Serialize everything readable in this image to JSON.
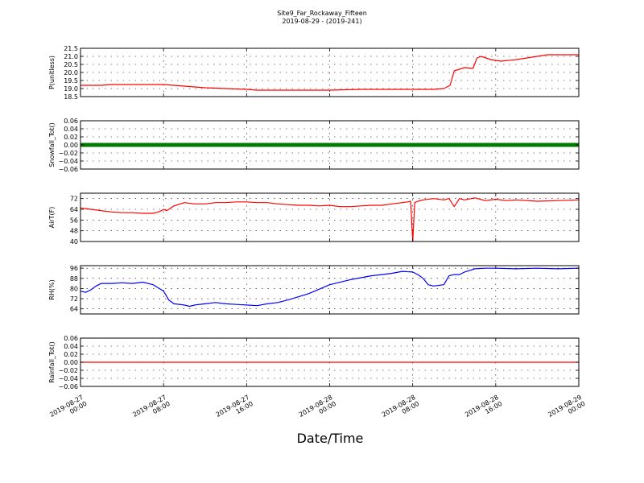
{
  "figure": {
    "title": "Site9_Far_Rockaway_Fifteen",
    "subtitle": "2019-08-29 - (2019-241)",
    "xlabel": "Date/Time"
  },
  "chart_data": [
    {
      "type": "line",
      "ylabel": "P(unitless)",
      "ylim": [
        18.5,
        21.5
      ],
      "yticks": [
        "18.5",
        "19.0",
        "19.5",
        "20.0",
        "20.5",
        "21.0",
        "21.5"
      ],
      "xlim": [
        0,
        48
      ],
      "xticks": [
        {
          "line1": "2019-08-27",
          "line2": "00:00"
        },
        {
          "line1": "2019-08-27",
          "line2": "08:00"
        },
        {
          "line1": "2019-08-27",
          "line2": "16:00"
        },
        {
          "line1": "2019-08-28",
          "line2": "00:00"
        },
        {
          "line1": "2019-08-28",
          "line2": "08:00"
        },
        {
          "line1": "2019-08-28",
          "line2": "16:00"
        },
        {
          "line1": "2019-08-29",
          "line2": "00:00"
        }
      ],
      "grid": true,
      "series": [
        {
          "color": "#ff0000",
          "marker": "none",
          "x": [
            0,
            2,
            3,
            8,
            9,
            10,
            12,
            14,
            16,
            17,
            18,
            20,
            22,
            24,
            27,
            29,
            30,
            32,
            34,
            35,
            35.6,
            36,
            37,
            37.8,
            38.2,
            38.6,
            39.5,
            40.5,
            42,
            43,
            44,
            45,
            46,
            48
          ],
          "y": [
            19.2,
            19.2,
            19.25,
            19.25,
            19.2,
            19.15,
            19.05,
            19.0,
            18.95,
            18.9,
            18.9,
            18.9,
            18.9,
            18.9,
            18.95,
            18.95,
            18.95,
            18.95,
            18.95,
            19.0,
            19.2,
            20.1,
            20.3,
            20.25,
            20.9,
            21.0,
            20.8,
            20.7,
            20.8,
            20.9,
            21.0,
            21.1,
            21.1,
            21.1
          ]
        }
      ]
    },
    {
      "type": "line",
      "ylabel": "Snowfall_Tot()",
      "ylim": [
        -0.06,
        0.06
      ],
      "yticks": [
        "−0.06",
        "−0.04",
        "−0.02",
        "0.00",
        "0.02",
        "0.04",
        "0.06"
      ],
      "xlim": [
        0,
        48
      ],
      "xticks": [
        {
          "line1": "2019-08-27",
          "line2": "00:00"
        },
        {
          "line1": "2019-08-27",
          "line2": "08:00"
        },
        {
          "line1": "2019-08-27",
          "line2": "16:00"
        },
        {
          "line1": "2019-08-28",
          "line2": "00:00"
        },
        {
          "line1": "2019-08-28",
          "line2": "08:00"
        },
        {
          "line1": "2019-08-28",
          "line2": "16:00"
        },
        {
          "line1": "2019-08-29",
          "line2": "00:00"
        }
      ],
      "grid": true,
      "series": [
        {
          "color": "#008000",
          "marker": "dot",
          "x": [
            0,
            48
          ],
          "y": [
            0,
            0
          ]
        }
      ]
    },
    {
      "type": "line",
      "ylabel": "AirT(F)",
      "ylim": [
        40,
        76
      ],
      "yticks": [
        "40",
        "48",
        "56",
        "64",
        "72"
      ],
      "xlim": [
        0,
        48
      ],
      "xticks": [
        {
          "line1": "2019-08-27",
          "line2": "00:00"
        },
        {
          "line1": "2019-08-27",
          "line2": "08:00"
        },
        {
          "line1": "2019-08-27",
          "line2": "16:00"
        },
        {
          "line1": "2019-08-28",
          "line2": "00:00"
        },
        {
          "line1": "2019-08-28",
          "line2": "08:00"
        },
        {
          "line1": "2019-08-28",
          "line2": "16:00"
        },
        {
          "line1": "2019-08-29",
          "line2": "00:00"
        }
      ],
      "grid": true,
      "series": [
        {
          "color": "#ff0000",
          "marker": "none",
          "x": [
            0,
            1,
            2,
            3,
            4,
            5,
            6,
            7,
            7.5,
            7.8,
            8.0,
            8.3,
            9,
            10,
            11,
            12,
            13,
            14,
            15,
            16,
            17,
            18,
            19,
            20,
            21,
            22,
            23,
            24,
            25,
            26,
            27,
            28,
            29,
            30,
            31,
            31.5,
            31.8,
            32.0,
            32.2,
            32.5,
            33.0,
            34,
            35,
            35.5,
            36,
            36.5,
            37,
            38,
            39,
            40,
            41,
            42,
            44,
            46,
            48
          ],
          "y": [
            65,
            64,
            63,
            62,
            61.5,
            61.5,
            61,
            61,
            62,
            63,
            64,
            63,
            66.5,
            69,
            68,
            68,
            69,
            69,
            69.5,
            69.5,
            69,
            69,
            68,
            67.5,
            67,
            67,
            66.5,
            67,
            66,
            66,
            66.5,
            67,
            67,
            68,
            69,
            69.5,
            70,
            40,
            69,
            70,
            71,
            72,
            71,
            72,
            66,
            72,
            71,
            72.5,
            70.5,
            71.5,
            70.5,
            71,
            70,
            70.5,
            71
          ]
        }
      ]
    },
    {
      "type": "line",
      "ylabel": "RH(%)",
      "ylim": [
        60,
        98
      ],
      "yticks": [
        "64",
        "72",
        "80",
        "88",
        "96"
      ],
      "xlim": [
        0,
        48
      ],
      "xticks": [
        {
          "line1": "2019-08-27",
          "line2": "00:00"
        },
        {
          "line1": "2019-08-27",
          "line2": "08:00"
        },
        {
          "line1": "2019-08-27",
          "line2": "16:00"
        },
        {
          "line1": "2019-08-28",
          "line2": "00:00"
        },
        {
          "line1": "2019-08-28",
          "line2": "08:00"
        },
        {
          "line1": "2019-08-28",
          "line2": "16:00"
        },
        {
          "line1": "2019-08-29",
          "line2": "00:00"
        }
      ],
      "grid": true,
      "series": [
        {
          "color": "#0000ff",
          "marker": "none",
          "x": [
            0,
            0.5,
            1,
            1.5,
            2,
            3,
            4,
            5,
            6,
            7,
            8,
            8.5,
            9,
            10,
            10.5,
            11,
            12,
            13,
            14,
            15,
            16,
            17,
            18,
            19,
            20,
            22,
            24,
            26,
            28,
            29,
            30,
            31,
            32,
            32.5,
            33,
            33.5,
            34,
            35,
            35.5,
            36,
            36.5,
            37,
            38,
            39,
            40,
            42,
            44,
            46,
            48
          ],
          "y": [
            78,
            77,
            79,
            82,
            84,
            84,
            84.5,
            84,
            85,
            83,
            78,
            71,
            68,
            67,
            66,
            67,
            68,
            69,
            68,
            67.5,
            67,
            66.5,
            68,
            69,
            71,
            76,
            83,
            87,
            90,
            91,
            92,
            93.5,
            93,
            91,
            88,
            83,
            82,
            83,
            90,
            91,
            91,
            93,
            95.5,
            96,
            96,
            95.5,
            96,
            95.5,
            96
          ]
        }
      ]
    },
    {
      "type": "line",
      "ylabel": "Rainfall_Tot()",
      "ylim": [
        -0.06,
        0.06
      ],
      "yticks": [
        "−0.06",
        "−0.04",
        "−0.02",
        "0.00",
        "0.02",
        "0.04",
        "0.06"
      ],
      "xlim": [
        0,
        48
      ],
      "xticks": [
        {
          "line1": "2019-08-27",
          "line2": "00:00"
        },
        {
          "line1": "2019-08-27",
          "line2": "08:00"
        },
        {
          "line1": "2019-08-27",
          "line2": "16:00"
        },
        {
          "line1": "2019-08-28",
          "line2": "00:00"
        },
        {
          "line1": "2019-08-28",
          "line2": "08:00"
        },
        {
          "line1": "2019-08-28",
          "line2": "16:00"
        },
        {
          "line1": "2019-08-29",
          "line2": "00:00"
        }
      ],
      "grid": true,
      "series": [
        {
          "color": "#ff0000",
          "marker": "none",
          "x": [
            0,
            48
          ],
          "y": [
            0,
            0
          ]
        }
      ]
    }
  ]
}
